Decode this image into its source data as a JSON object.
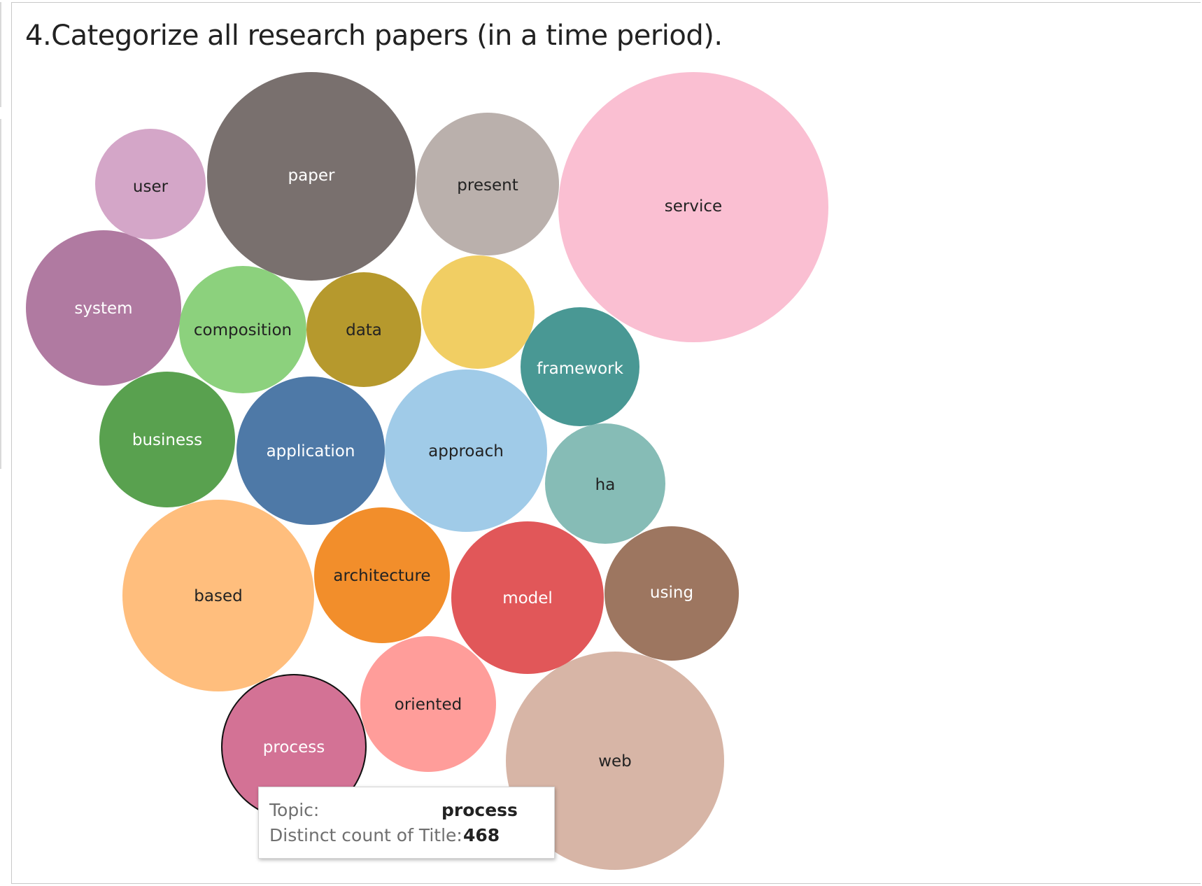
{
  "chart_data": {
    "type": "bubble",
    "title": "4.Categorize all research papers (in a time period).",
    "series": [
      {
        "name": "service",
        "color": "#fabfd2",
        "label_color": "#222222"
      },
      {
        "name": "paper",
        "color": "#79706e",
        "label_color": "#ffffff"
      },
      {
        "name": "web",
        "color": "#d7b5a6",
        "label_color": "#222222"
      },
      {
        "name": "based",
        "color": "#ffbe7d",
        "label_color": "#222222"
      },
      {
        "name": "approach",
        "color": "#a0cbe8",
        "label_color": "#222222"
      },
      {
        "name": "system",
        "color": "#b07aa1",
        "label_color": "#ffffff"
      },
      {
        "name": "model",
        "color": "#e15759",
        "label_color": "#ffffff"
      },
      {
        "name": "application",
        "color": "#4e79a7",
        "label_color": "#ffffff"
      },
      {
        "name": "present",
        "color": "#bab0ac",
        "label_color": "#222222"
      },
      {
        "name": "process",
        "color": "#d37295",
        "label_color": "#ffffff",
        "highlighted": true
      },
      {
        "name": "business",
        "color": "#59a14f",
        "label_color": "#ffffff"
      },
      {
        "name": "architecture",
        "color": "#f28e2b",
        "label_color": "#222222"
      },
      {
        "name": "oriented",
        "color": "#ff9d9a",
        "label_color": "#222222"
      },
      {
        "name": "using",
        "color": "#9d7660",
        "label_color": "#ffffff"
      },
      {
        "name": "composition",
        "color": "#8cd17d",
        "label_color": "#222222"
      },
      {
        "name": "ha",
        "color": "#86bcb6",
        "label_color": "#222222"
      },
      {
        "name": "framework",
        "color": "#499894",
        "label_color": "#ffffff"
      },
      {
        "name": "data",
        "color": "#b6992d",
        "label_color": "#222222"
      },
      {
        "name": "",
        "color": "#f1ce63",
        "label_color": "#222222"
      },
      {
        "name": "user",
        "color": "#d4a6c8",
        "label_color": "#222222"
      }
    ],
    "tooltip": {
      "topic_label": "Topic:",
      "topic_value": "process",
      "count_label": "Distinct count of Title:",
      "count_value": "468"
    }
  }
}
